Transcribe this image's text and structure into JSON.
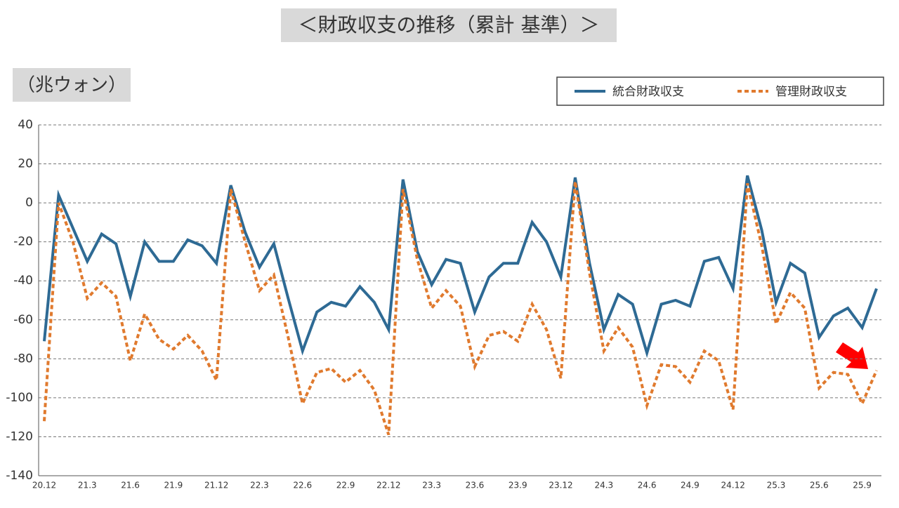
{
  "chart_data": {
    "type": "line",
    "title": "＜財政収支の推移（累計 基準）＞",
    "unit_label": "（兆ウォン）",
    "categories": [
      "20.12",
      null,
      null,
      "21.3",
      null,
      null,
      "21.6",
      null,
      null,
      "21.9",
      null,
      null,
      "21.12",
      null,
      null,
      "22.3",
      null,
      null,
      "22.6",
      null,
      null,
      "22.9",
      null,
      null,
      "22.12",
      null,
      null,
      "23.3",
      null,
      null,
      "23.6",
      null,
      null,
      "23.9",
      null,
      null,
      "23.12",
      null,
      null,
      "24.3",
      null,
      null,
      "24.6",
      null,
      null,
      "24.9",
      null,
      null,
      "24.12",
      null,
      null,
      "25.3",
      null,
      null,
      "25.6",
      null,
      null,
      "25.9",
      null
    ],
    "series": [
      {
        "name": "統合財政収支",
        "color": "#2e6a94",
        "dashed": false,
        "values": [
          -71,
          4,
          -13,
          -30,
          -16,
          -21,
          -48,
          -20,
          -30,
          -30,
          -19,
          -22,
          -31,
          9,
          -15,
          -33,
          -21,
          -49,
          -76,
          -56,
          -51,
          -53,
          -43,
          -51,
          -65,
          12,
          -25,
          -42,
          -29,
          -31,
          -56,
          -38,
          -31,
          -31,
          -10,
          -20,
          -38,
          13,
          -31,
          -65,
          -47,
          -52,
          -77,
          -52,
          -50,
          -53,
          -30,
          -28,
          -44,
          14,
          -14,
          -51,
          -31,
          -36,
          -69,
          -58,
          -54,
          -64,
          -44
        ]
      },
      {
        "name": "管理財政収支",
        "color": "#e07a2e",
        "dashed": true,
        "values": [
          -112,
          0,
          -20,
          -49,
          -41,
          -48,
          -81,
          -57,
          -70,
          -75,
          -68,
          -76,
          -91,
          7,
          -20,
          -45,
          -37,
          -69,
          -103,
          -87,
          -85,
          -92,
          -86,
          -96,
          -119,
          7,
          -29,
          -54,
          -45,
          -53,
          -84,
          -68,
          -66,
          -71,
          -52,
          -65,
          -90,
          11,
          -36,
          -76,
          -64,
          -74,
          -104,
          -83,
          -84,
          -92,
          -76,
          -81,
          -106,
          10,
          -22,
          -62,
          -46,
          -54,
          -95,
          -87,
          -88,
          -103,
          -86
        ]
      }
    ],
    "ylim": [
      -140,
      40
    ],
    "yticks": [
      -140,
      -120,
      -100,
      -80,
      -60,
      -40,
      -20,
      0,
      20,
      40
    ],
    "grid": true,
    "legend": "top-right"
  }
}
